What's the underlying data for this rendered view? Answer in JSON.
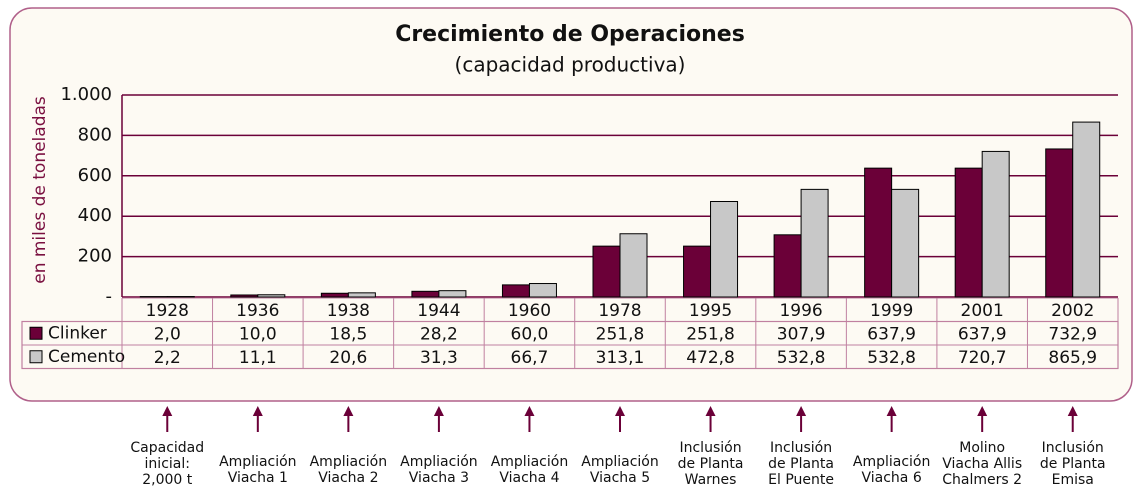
{
  "chart_data": {
    "type": "bar",
    "title": "Crecimiento de Operaciones",
    "subtitle": "(capacidad productiva)",
    "y_label": "en miles de toneladas",
    "categories": [
      "1928",
      "1936",
      "1938",
      "1944",
      "1960",
      "1978",
      "1995",
      "1996",
      "1999",
      "2001",
      "2002"
    ],
    "series": [
      {
        "name": "Clinker",
        "color": "#6b0038",
        "values": [
          2.0,
          10.0,
          18.5,
          28.2,
          60.0,
          251.8,
          251.8,
          307.9,
          637.9,
          637.9,
          732.9
        ],
        "value_labels": [
          "2,0",
          "10,0",
          "18,5",
          "28,2",
          "60,0",
          "251,8",
          "251,8",
          "307,9",
          "637,9",
          "637,9",
          "732,9"
        ]
      },
      {
        "name": "Cemento",
        "color": "#c8c8c8",
        "values": [
          2.2,
          11.1,
          20.6,
          31.3,
          66.7,
          313.1,
          472.8,
          532.8,
          532.8,
          720.7,
          865.9
        ],
        "value_labels": [
          "2,2",
          "11,1",
          "20,6",
          "31,3",
          "66,7",
          "313,1",
          "472,8",
          "532,8",
          "532,8",
          "720,7",
          "865,9"
        ]
      }
    ],
    "ylim": [
      0,
      1000
    ],
    "yticks": [
      {
        "value": 0,
        "label": "-"
      },
      200,
      400,
      600,
      800,
      {
        "value": 1000,
        "label": "1.000"
      }
    ],
    "grid": true,
    "annotations": [
      [
        "Capacidad",
        "inicial:",
        "2,000 t"
      ],
      [
        "Ampliación",
        "Viacha 1"
      ],
      [
        "Ampliación",
        "Viacha 2"
      ],
      [
        "Ampliación",
        "Viacha 3"
      ],
      [
        "Ampliación",
        "Viacha 4"
      ],
      [
        "Ampliación",
        "Viacha 5"
      ],
      [
        "Inclusión",
        "de Planta",
        "Warnes"
      ],
      [
        "Inclusión",
        "de Planta",
        "El Puente"
      ],
      [
        "Ampliación",
        "Viacha 6"
      ],
      [
        "Molino",
        "Viacha Allis",
        "Chalmers 2"
      ],
      [
        "Inclusión",
        "de Planta",
        "Emisa"
      ]
    ]
  }
}
